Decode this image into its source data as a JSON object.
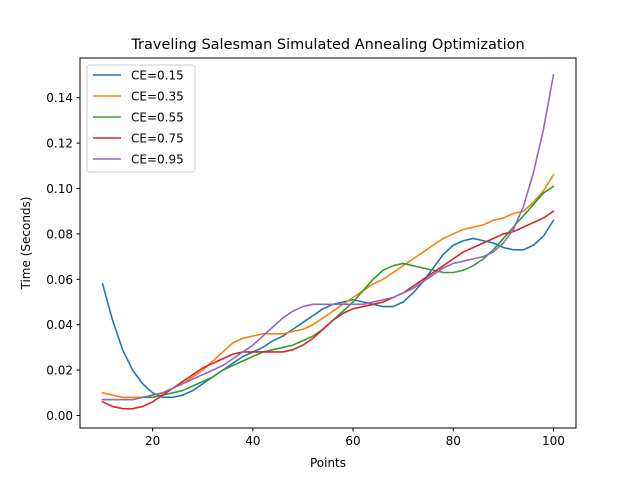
{
  "chart_data": {
    "type": "line",
    "title": "Traveling Salesman Simulated Annealing Optimization",
    "xlabel": "Points",
    "ylabel": "Time (Seconds)",
    "xlim": [
      5.5,
      104.5
    ],
    "ylim": [
      -0.0055,
      0.1575
    ],
    "xticks": [
      20,
      40,
      60,
      80,
      100
    ],
    "xtick_labels": [
      "20",
      "40",
      "60",
      "80",
      "100"
    ],
    "yticks": [
      0.0,
      0.02,
      0.04,
      0.06,
      0.08,
      0.1,
      0.12,
      0.14
    ],
    "ytick_labels": [
      "0.00",
      "0.02",
      "0.04",
      "0.06",
      "0.08",
      "0.10",
      "0.12",
      "0.14"
    ],
    "grid": false,
    "legend_position": "top-left",
    "x": [
      10,
      12,
      14,
      16,
      18,
      20,
      22,
      24,
      26,
      28,
      30,
      32,
      34,
      36,
      38,
      40,
      42,
      44,
      46,
      48,
      50,
      52,
      54,
      56,
      58,
      60,
      62,
      64,
      66,
      68,
      70,
      72,
      74,
      76,
      78,
      80,
      82,
      84,
      86,
      88,
      90,
      92,
      94,
      96,
      98,
      100
    ],
    "series": [
      {
        "name": "CE=0.15",
        "color": "#1f77b4",
        "values": [
          0.058,
          0.042,
          0.029,
          0.02,
          0.014,
          0.01,
          0.008,
          0.008,
          0.009,
          0.011,
          0.014,
          0.017,
          0.02,
          0.023,
          0.026,
          0.028,
          0.03,
          0.033,
          0.035,
          0.038,
          0.041,
          0.044,
          0.047,
          0.049,
          0.05,
          0.051,
          0.05,
          0.049,
          0.048,
          0.048,
          0.05,
          0.054,
          0.059,
          0.065,
          0.071,
          0.075,
          0.077,
          0.078,
          0.077,
          0.076,
          0.074,
          0.073,
          0.073,
          0.075,
          0.079,
          0.086
        ]
      },
      {
        "name": "CE=0.35",
        "color": "#ff7f0e",
        "values": [
          0.01,
          0.009,
          0.008,
          0.008,
          0.008,
          0.009,
          0.01,
          0.012,
          0.014,
          0.017,
          0.02,
          0.024,
          0.028,
          0.032,
          0.034,
          0.035,
          0.036,
          0.036,
          0.036,
          0.037,
          0.038,
          0.04,
          0.043,
          0.046,
          0.049,
          0.052,
          0.055,
          0.058,
          0.06,
          0.063,
          0.066,
          0.069,
          0.072,
          0.075,
          0.078,
          0.08,
          0.082,
          0.083,
          0.084,
          0.086,
          0.087,
          0.089,
          0.09,
          0.094,
          0.099,
          0.106
        ]
      },
      {
        "name": "CE=0.55",
        "color": "#2ca02c",
        "values": [
          0.007,
          0.007,
          0.007,
          0.007,
          0.008,
          0.008,
          0.009,
          0.01,
          0.011,
          0.013,
          0.015,
          0.017,
          0.02,
          0.022,
          0.024,
          0.026,
          0.028,
          0.029,
          0.03,
          0.031,
          0.033,
          0.035,
          0.038,
          0.042,
          0.046,
          0.05,
          0.055,
          0.06,
          0.064,
          0.066,
          0.067,
          0.066,
          0.065,
          0.064,
          0.063,
          0.063,
          0.064,
          0.066,
          0.069,
          0.073,
          0.078,
          0.083,
          0.088,
          0.093,
          0.098,
          0.101
        ]
      },
      {
        "name": "CE=0.75",
        "color": "#d62728",
        "values": [
          0.006,
          0.004,
          0.003,
          0.003,
          0.004,
          0.006,
          0.009,
          0.012,
          0.015,
          0.018,
          0.021,
          0.023,
          0.025,
          0.027,
          0.028,
          0.028,
          0.028,
          0.028,
          0.028,
          0.029,
          0.031,
          0.034,
          0.038,
          0.042,
          0.045,
          0.047,
          0.048,
          0.049,
          0.05,
          0.052,
          0.054,
          0.057,
          0.06,
          0.063,
          0.066,
          0.069,
          0.072,
          0.074,
          0.076,
          0.078,
          0.08,
          0.081,
          0.083,
          0.085,
          0.087,
          0.09
        ]
      },
      {
        "name": "CE=0.95",
        "color": "#9467bd",
        "values": [
          0.007,
          0.007,
          0.007,
          0.007,
          0.008,
          0.009,
          0.01,
          0.012,
          0.014,
          0.016,
          0.018,
          0.02,
          0.022,
          0.025,
          0.028,
          0.031,
          0.035,
          0.039,
          0.043,
          0.046,
          0.048,
          0.049,
          0.049,
          0.049,
          0.049,
          0.049,
          0.049,
          0.05,
          0.051,
          0.052,
          0.054,
          0.056,
          0.059,
          0.062,
          0.065,
          0.067,
          0.068,
          0.069,
          0.07,
          0.072,
          0.076,
          0.082,
          0.092,
          0.107,
          0.126,
          0.15
        ]
      }
    ]
  }
}
